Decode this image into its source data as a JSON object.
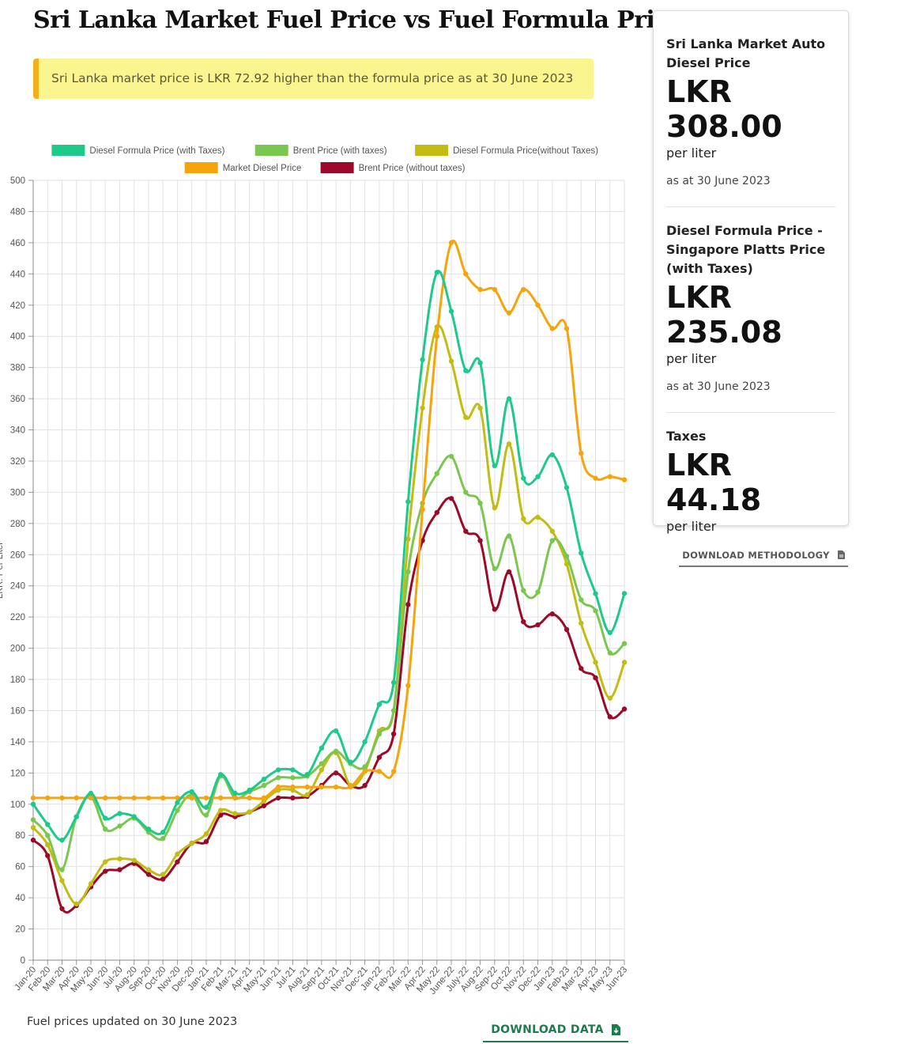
{
  "page": {
    "title": "Sri Lanka Market Fuel Price vs Fuel Formula Price",
    "alert": "Sri Lanka market price is LKR 72.92 higher than the formula price as at 30 June 2023",
    "updated": "Fuel prices updated on 30 June 2023",
    "download_data": "DOWNLOAD DATA",
    "download_methodology": "DOWNLOAD METHODOLOGY"
  },
  "card": {
    "market": {
      "label": "Sri Lanka Market Auto Diesel Price",
      "value_prefix": "LKR",
      "value": "308.00",
      "unit": "per liter",
      "as_at": "as at 30 June 2023"
    },
    "formula": {
      "label": "Diesel Formula Price - Singapore Platts Price (with Taxes)",
      "value_prefix": "LKR",
      "value": "235.08",
      "unit": "per liter",
      "as_at": "as at 30 June 2023"
    },
    "taxes": {
      "label": "Taxes",
      "value": "LKR 44.18",
      "unit": "per liter"
    }
  },
  "chart_data": {
    "type": "line",
    "ylabel": "LKR. Per Liter",
    "ylim": [
      0,
      500
    ],
    "ytick_step": 20,
    "grid": true,
    "legend_position": "top",
    "categories": [
      "Jan-20",
      "Feb-20",
      "Mar-20",
      "Apr-20",
      "May-20",
      "Jun-20",
      "Jul-20",
      "Aug-20",
      "Sep-20",
      "Oct-20",
      "Nov-20",
      "Dec-20",
      "Jan-21",
      "Feb-21",
      "Mar-21",
      "Apr-21",
      "May-21",
      "Jun-21",
      "Jul-21",
      "Aug-21",
      "Sep-21",
      "Oct-21",
      "Nov-21",
      "Dec-21",
      "Jan-22",
      "Feb-22",
      "Mar-22",
      "Apr-22",
      "May-22",
      "June-22",
      "July-22",
      "Aug-22",
      "Sep-22",
      "Oct-22",
      "Nov-22",
      "Dec-22",
      "Jan-23",
      "Feb-23",
      "Mar-23",
      "Apr-23",
      "May-23",
      "Jun-23"
    ],
    "series": [
      {
        "name": "Diesel Formula Price (with Taxes)",
        "color": "#1dc98b",
        "values": [
          100,
          87,
          77,
          92,
          107,
          91,
          94,
          92,
          84,
          82,
          101,
          108,
          98,
          119,
          107,
          109,
          116,
          122,
          122,
          119,
          136,
          147,
          127,
          140,
          164,
          178,
          294,
          385,
          441,
          416,
          378,
          383,
          317,
          360,
          309,
          310,
          324,
          303,
          261,
          235,
          210,
          235.08
        ]
      },
      {
        "name": "Brent Price (with taxes)",
        "color": "#7ac74f",
        "values": [
          90,
          80,
          58,
          92,
          105,
          84,
          86,
          91,
          82,
          78,
          96,
          106,
          93,
          118,
          104,
          108,
          112,
          117,
          117,
          118,
          126,
          134,
          126,
          124,
          145,
          160,
          249,
          293,
          312,
          323,
          300,
          293,
          251,
          272,
          237,
          236,
          269,
          259,
          231,
          224,
          197,
          203
        ]
      },
      {
        "name": "Diesel Formula Price(without Taxes)",
        "color": "#c2bc13",
        "values": [
          85,
          74,
          51,
          36,
          49,
          63,
          65,
          64,
          58,
          55,
          68,
          75,
          81,
          96,
          94,
          95,
          102,
          109,
          109,
          106,
          122,
          133,
          112,
          121,
          147,
          160,
          270,
          354,
          406,
          384,
          348,
          354,
          290,
          331,
          283,
          284,
          275,
          254,
          216,
          191,
          168,
          191
        ]
      },
      {
        "name": "Market Diesel Price",
        "color": "#f5a40c",
        "values": [
          104,
          104,
          104,
          104,
          104,
          104,
          104,
          104,
          104,
          104,
          104,
          104,
          104,
          104,
          104,
          104,
          104,
          111,
          111,
          111,
          111,
          111,
          111,
          121,
          121,
          121,
          176,
          289,
          400,
          460,
          440,
          430,
          430,
          415,
          430,
          420,
          405,
          405,
          325,
          309,
          310,
          308
        ]
      },
      {
        "name": "Brent Price (without taxes)",
        "color": "#9b0a28",
        "values": [
          77,
          67,
          33,
          35,
          47,
          57,
          58,
          62,
          55,
          52,
          63,
          75,
          76,
          93,
          92,
          95,
          99,
          104,
          104,
          105,
          112,
          120,
          112,
          112,
          130,
          145,
          228,
          269,
          287,
          296,
          275,
          269,
          225,
          249,
          217,
          215,
          222,
          212,
          187,
          181,
          156,
          161
        ]
      }
    ]
  }
}
